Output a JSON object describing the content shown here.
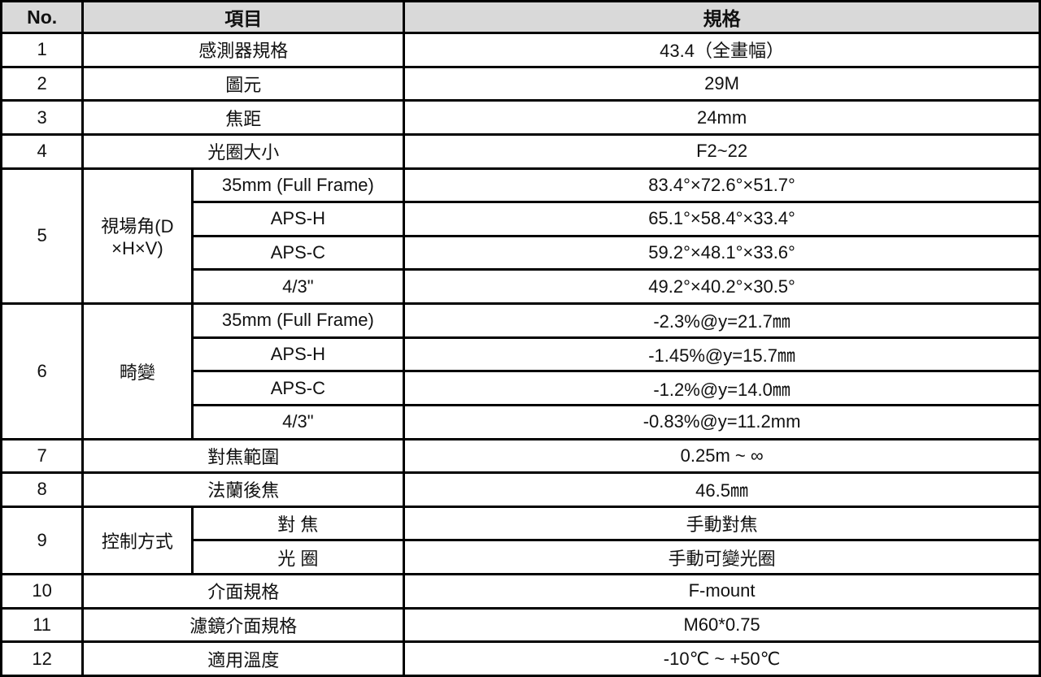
{
  "table": {
    "headers": {
      "no": "No.",
      "item": "項目",
      "spec": "規格"
    },
    "rows": [
      {
        "no": "1",
        "item": "感測器規格",
        "spec": "43.4（全畫幅）"
      },
      {
        "no": "2",
        "item": "圖元",
        "spec": "29M"
      },
      {
        "no": "3",
        "item": "焦距",
        "spec": "24mm"
      },
      {
        "no": "4",
        "item": "光圈大小",
        "spec": "F2~22"
      },
      {
        "no": "5",
        "item": "視場角(D\n×H×V)",
        "subrows": [
          {
            "sub": "35mm (Full Frame)",
            "spec": "83.4°×72.6°×51.7°"
          },
          {
            "sub": "APS-H",
            "spec": "65.1°×58.4°×33.4°"
          },
          {
            "sub": "APS-C",
            "spec": "59.2°×48.1°×33.6°"
          },
          {
            "sub": "4/3\"",
            "spec": "49.2°×40.2°×30.5°"
          }
        ]
      },
      {
        "no": "6",
        "item": "畸變",
        "subrows": [
          {
            "sub": "35mm (Full Frame)",
            "spec": "-2.3%@y=21.7㎜"
          },
          {
            "sub": "APS-H",
            "spec": "-1.45%@y=15.7㎜"
          },
          {
            "sub": "APS-C",
            "spec": "-1.2%@y=14.0㎜"
          },
          {
            "sub": "4/3\"",
            "spec": "-0.83%@y=11.2mm"
          }
        ]
      },
      {
        "no": "7",
        "item": "對焦範圍",
        "spec": "0.25m ~ ∞"
      },
      {
        "no": "8",
        "item": "法蘭後焦",
        "spec": "46.5㎜"
      },
      {
        "no": "9",
        "item": "控制方式",
        "subrows": [
          {
            "sub": "對 焦",
            "spec": "手動對焦"
          },
          {
            "sub": "光 圈",
            "spec": "手動可變光圈"
          }
        ]
      },
      {
        "no": "10",
        "item": "介面規格",
        "spec": "F-mount"
      },
      {
        "no": "11",
        "item": "濾鏡介面規格",
        "spec": "M60*0.75"
      },
      {
        "no": "12",
        "item": "適用溫度",
        "spec": "-10℃ ~ +50℃"
      }
    ]
  }
}
